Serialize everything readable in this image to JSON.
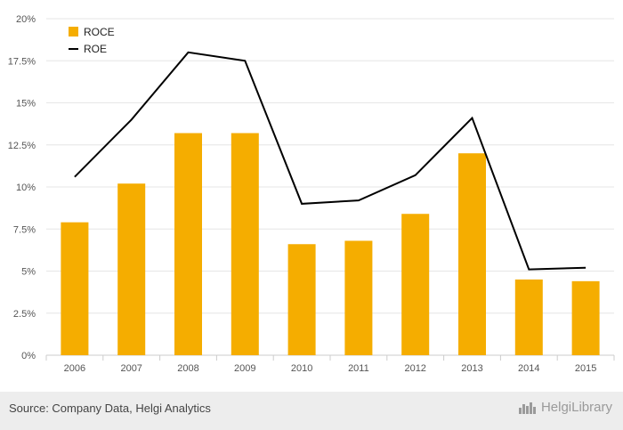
{
  "chart_data": {
    "type": "bar",
    "categories": [
      "2006",
      "2007",
      "2008",
      "2009",
      "2010",
      "2011",
      "2012",
      "2013",
      "2014",
      "2015"
    ],
    "series": [
      {
        "name": "ROCE",
        "type": "bar",
        "color": "#f5ad00",
        "values": [
          7.9,
          10.2,
          13.2,
          13.2,
          6.6,
          6.8,
          8.4,
          12.0,
          4.5,
          4.4
        ]
      },
      {
        "name": "ROE",
        "type": "line",
        "color": "#000000",
        "values": [
          10.6,
          14.0,
          18.0,
          17.5,
          9.0,
          9.2,
          10.7,
          14.1,
          5.1,
          5.2
        ]
      }
    ],
    "yticks": [
      "0%",
      "2.5%",
      "5%",
      "7.5%",
      "10%",
      "12.5%",
      "15%",
      "17.5%",
      "20%"
    ],
    "ylim": [
      0,
      20
    ],
    "grid": true,
    "legend_position": "top-left"
  },
  "footer": {
    "source": "Source: Company Data, Helgi Analytics",
    "brand": "HelgiLibrary"
  },
  "colors": {
    "grid": "#e6e6e6",
    "axis_text": "#555555",
    "footer_band": "#ededed"
  },
  "icons": {
    "brand_logo": "helgi-city-skyline-icon"
  }
}
